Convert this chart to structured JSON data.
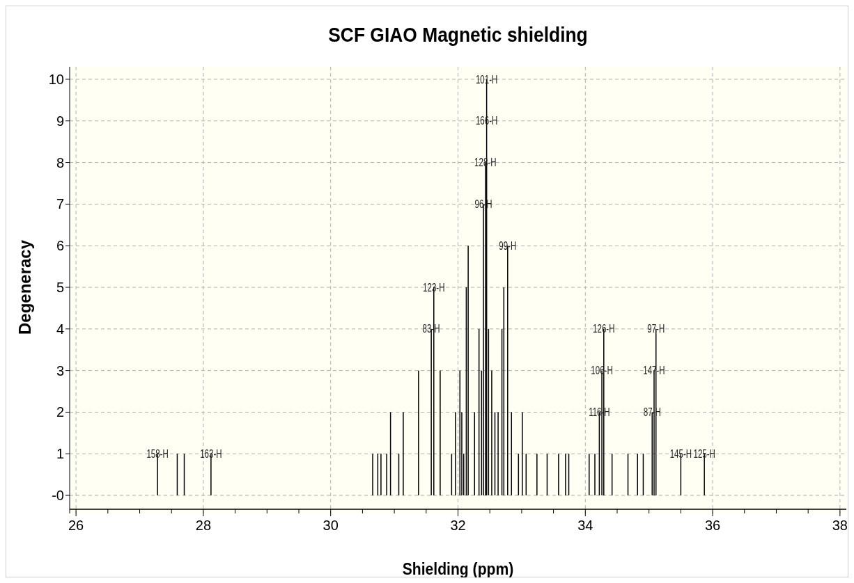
{
  "chart_data": {
    "type": "bar",
    "title": "SCF GIAO Magnetic shielding",
    "xlabel": "Shielding (ppm)",
    "ylabel": "Degeneracy",
    "x": [
      27.28,
      27.59,
      27.7,
      28.12,
      30.66,
      30.74,
      30.79,
      30.88,
      30.94,
      31.07,
      31.14,
      31.38,
      31.58,
      31.62,
      31.72,
      31.9,
      31.96,
      32.03,
      32.06,
      32.09,
      32.13,
      32.16,
      32.26,
      32.33,
      32.37,
      32.4,
      32.43,
      32.45,
      32.48,
      32.53,
      32.58,
      32.63,
      32.69,
      32.72,
      32.78,
      32.84,
      32.95,
      33.01,
      33.07,
      33.24,
      33.4,
      33.58,
      33.69,
      33.74,
      34.06,
      34.15,
      34.22,
      34.26,
      34.29,
      34.42,
      34.67,
      34.82,
      34.91,
      35.05,
      35.08,
      35.11,
      35.5,
      35.87
    ],
    "values": [
      1,
      1,
      1,
      1,
      1,
      1,
      1,
      1,
      2,
      1,
      2,
      3,
      4,
      5,
      3,
      1,
      2,
      3,
      2,
      1,
      5,
      6,
      2,
      4,
      3,
      7,
      8,
      10,
      4,
      3,
      2,
      2,
      4,
      5,
      6,
      2,
      1,
      2,
      1,
      1,
      1,
      1,
      1,
      1,
      1,
      1,
      2,
      3,
      4,
      1,
      1,
      1,
      1,
      2,
      3,
      4,
      1,
      1
    ],
    "color": "#000000",
    "xlim": [
      25.9,
      38.1
    ],
    "ylim": [
      -0.3,
      10.3
    ],
    "xticks": [
      {
        "value": 26,
        "label": "26"
      },
      {
        "value": 26.5,
        "label": null
      },
      {
        "value": 27,
        "label": null
      },
      {
        "value": 27.5,
        "label": null
      },
      {
        "value": 28,
        "label": "28"
      },
      {
        "value": 28.5,
        "label": null
      },
      {
        "value": 29,
        "label": null
      },
      {
        "value": 29.5,
        "label": null
      },
      {
        "value": 30,
        "label": "30"
      },
      {
        "value": 30.5,
        "label": null
      },
      {
        "value": 31,
        "label": null
      },
      {
        "value": 31.5,
        "label": null
      },
      {
        "value": 32,
        "label": "32"
      },
      {
        "value": 32.5,
        "label": null
      },
      {
        "value": 33,
        "label": null
      },
      {
        "value": 33.5,
        "label": null
      },
      {
        "value": 34,
        "label": "34"
      },
      {
        "value": 34.5,
        "label": null
      },
      {
        "value": 35,
        "label": null
      },
      {
        "value": 35.5,
        "label": null
      },
      {
        "value": 36,
        "label": "36"
      },
      {
        "value": 36.5,
        "label": null
      },
      {
        "value": 37,
        "label": null
      },
      {
        "value": 37.5,
        "label": null
      },
      {
        "value": 38,
        "label": "38"
      }
    ],
    "yticks": [
      {
        "value": 0,
        "label": "-0"
      },
      1,
      2,
      3,
      4,
      5,
      6,
      7,
      8,
      9,
      10
    ],
    "grid": true,
    "annotations": [
      {
        "text": "158-H",
        "x": 27.28,
        "y": 1
      },
      {
        "text": "163-H",
        "x": 28.12,
        "y": 1
      },
      {
        "text": "101-H",
        "x": 32.45,
        "y": 10
      },
      {
        "text": "166-H",
        "x": 32.45,
        "y": 9
      },
      {
        "text": "128-H",
        "x": 32.43,
        "y": 8
      },
      {
        "text": "96-H",
        "x": 32.4,
        "y": 7
      },
      {
        "text": "99-H",
        "x": 32.78,
        "y": 6
      },
      {
        "text": "123-H",
        "x": 31.62,
        "y": 5
      },
      {
        "text": "83-H",
        "x": 31.58,
        "y": 4
      },
      {
        "text": "126-H",
        "x": 34.29,
        "y": 4
      },
      {
        "text": "97-H",
        "x": 35.11,
        "y": 4
      },
      {
        "text": "106-H",
        "x": 34.26,
        "y": 3
      },
      {
        "text": "147-H",
        "x": 35.08,
        "y": 3
      },
      {
        "text": "116-H",
        "x": 34.22,
        "y": 2
      },
      {
        "text": "87-H",
        "x": 35.05,
        "y": 2
      },
      {
        "text": "145-H",
        "x": 35.5,
        "y": 1
      },
      {
        "text": "125-H",
        "x": 35.87,
        "y": 1
      }
    ]
  }
}
